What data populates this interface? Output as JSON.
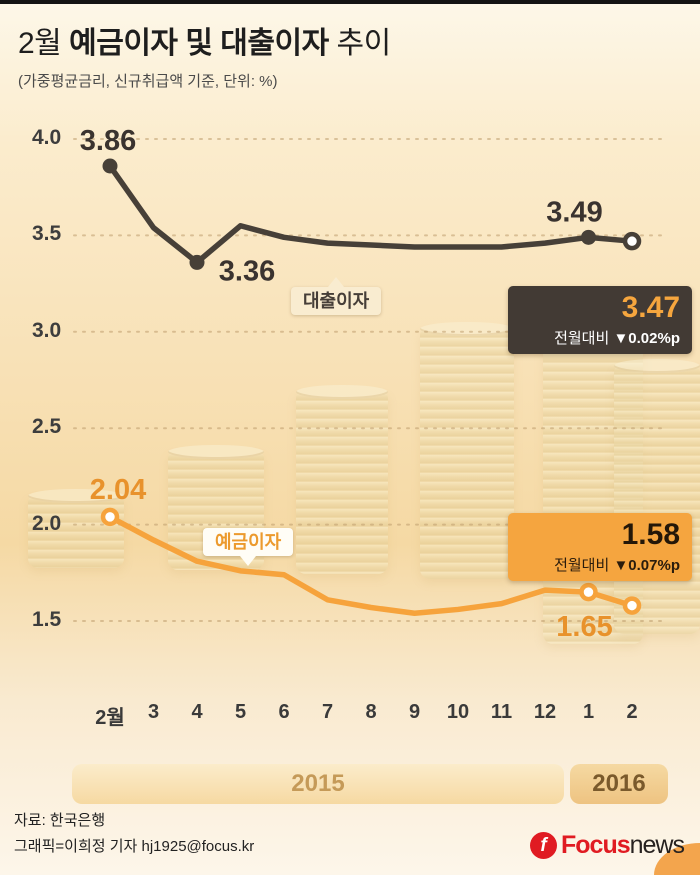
{
  "header": {
    "title_prefix": "2월 ",
    "title_strong": "예금이자 및 대출이자",
    "title_suffix": " 추이",
    "subtitle": "(가중평균금리, 신규취급액 기준, 단위: %)"
  },
  "chart_data": {
    "type": "line",
    "title": "2월 예금이자 및 대출이자 추이",
    "unit": "%",
    "basis": "가중평균금리, 신규취급액 기준",
    "x_labels": [
      "2월",
      "3",
      "4",
      "5",
      "6",
      "7",
      "8",
      "9",
      "10",
      "11",
      "12",
      "1",
      "2"
    ],
    "y_ticks": [
      4.0,
      3.5,
      3.0,
      2.5,
      2.0,
      1.5
    ],
    "y_tick_labels": [
      "4.0",
      "3.5",
      "3.0",
      "2.5",
      "2.0",
      "1.5"
    ],
    "ylim": [
      1.5,
      4.0
    ],
    "grid": true,
    "series": [
      {
        "name": "대출이자",
        "color": "#474038",
        "values": [
          3.86,
          3.54,
          3.36,
          3.55,
          3.49,
          3.46,
          3.45,
          3.44,
          3.44,
          3.44,
          3.46,
          3.49,
          3.47
        ]
      },
      {
        "name": "예금이자",
        "color": "#f6a33c",
        "values": [
          2.04,
          1.92,
          1.81,
          1.76,
          1.74,
          1.61,
          1.57,
          1.54,
          1.56,
          1.59,
          1.66,
          1.65,
          1.58
        ]
      }
    ],
    "point_labels": [
      {
        "series": 0,
        "index": 0,
        "text": "3.86"
      },
      {
        "series": 0,
        "index": 2,
        "text": "3.36"
      },
      {
        "series": 0,
        "index": 11,
        "text": "3.49"
      },
      {
        "series": 1,
        "index": 0,
        "text": "2.04"
      },
      {
        "series": 1,
        "index": 11,
        "text": "1.65"
      }
    ],
    "callouts": [
      {
        "value": "3.47",
        "label": "전월대비",
        "delta": "▼0.02%p"
      },
      {
        "value": "1.58",
        "label": "전월대비",
        "delta": "▼0.07%p"
      }
    ],
    "year_bands": [
      {
        "label": "2015"
      },
      {
        "label": "2016"
      }
    ]
  },
  "footer": {
    "source": "자료: 한국은행",
    "credit": "그래픽=이희정 기자 hj1925@focus.kr",
    "logo_icon": "f",
    "logo_focus": "Focus",
    "logo_news": "news"
  }
}
